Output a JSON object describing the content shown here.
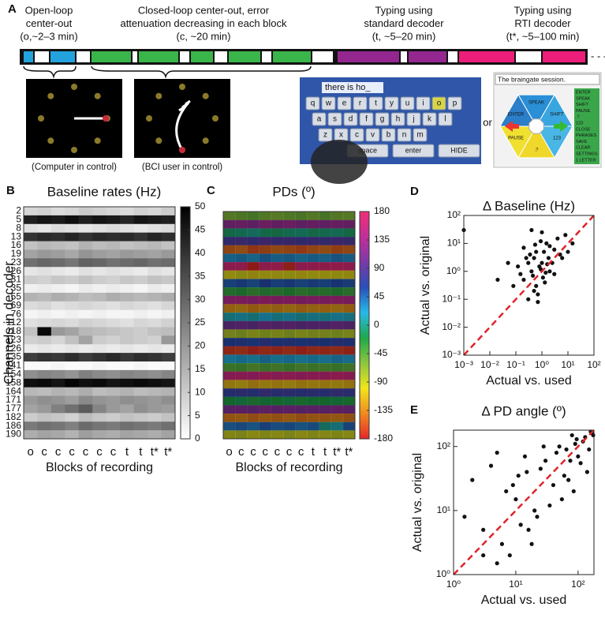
{
  "panel_a": {
    "panel": "A",
    "headers": [
      {
        "lines": [
          "Open-loop",
          "center-out",
          "(o,~2–3 min)"
        ]
      },
      {
        "lines": [
          "Closed-loop center-out, error",
          "attenuation decreasing in each block",
          "(c, ~20 min)"
        ]
      },
      {
        "lines": [
          "Typing using",
          "standard decoder",
          "(t, ~5–20 min)"
        ]
      },
      {
        "lines": [
          "Typing using",
          "RTI decoder",
          "(t*, ~5–100 min)"
        ]
      }
    ],
    "captions": [
      "(Computer in control)",
      "(BCI user in control)"
    ],
    "or": "or",
    "keyboard": {
      "field": "there is ho_",
      "rows": [
        [
          "q",
          "w",
          "e",
          "r",
          "t",
          "y",
          "u",
          "i",
          "o",
          "p"
        ],
        [
          "a",
          "s",
          "d",
          "f",
          "g",
          "h",
          "j",
          "k",
          "l"
        ],
        [
          "z",
          "x",
          "c",
          "v",
          "b",
          "n",
          "m"
        ],
        [
          "space",
          "enter",
          "HIDE"
        ]
      ]
    },
    "braingate": {
      "title": "The braingate session.",
      "wheel": [
        "SPEAK",
        "SHIFT",
        "123",
        ".?",
        "PAUSE",
        "ENTER"
      ],
      "menu": [
        "ENTER",
        "SPEAK",
        "SHIFT",
        "PAUSE",
        ".?",
        "123",
        "CLOSE",
        "PHRASES",
        "SAVE",
        "CLEAR",
        "SETTINGS",
        "1 LETTER"
      ]
    }
  },
  "chart_data": [
    {
      "type": "heatmap",
      "panel": "B",
      "title": "Baseline rates (Hz)",
      "ylabel": "Channels in decoder",
      "xlabel": "Blocks of recording",
      "categories": [
        "o",
        "c",
        "c",
        "c",
        "c",
        "c",
        "c",
        "t",
        "t",
        "t*",
        "t*"
      ],
      "rows": [
        "2",
        "5",
        "8",
        "13",
        "16",
        "19",
        "23",
        "26",
        "31",
        "35",
        "55",
        "69",
        "76",
        "112",
        "118",
        "123",
        "126",
        "135",
        "141",
        "154",
        "158",
        "164",
        "171",
        "177",
        "182",
        "186",
        "190"
      ],
      "values": [
        [
          8,
          9,
          7,
          8,
          10,
          9,
          8,
          7,
          9,
          8,
          10
        ],
        [
          44,
          46,
          45,
          47,
          44,
          46,
          45,
          43,
          46,
          45,
          44
        ],
        [
          6,
          5,
          7,
          6,
          5,
          6,
          7,
          6,
          5,
          6,
          7
        ],
        [
          40,
          42,
          41,
          43,
          40,
          42,
          41,
          42,
          40,
          43,
          41
        ],
        [
          12,
          14,
          13,
          12,
          15,
          13,
          14,
          12,
          13,
          14,
          12
        ],
        [
          18,
          20,
          19,
          17,
          21,
          19,
          18,
          20,
          19,
          18,
          20
        ],
        [
          28,
          30,
          29,
          27,
          31,
          30,
          28,
          29,
          30,
          28,
          29
        ],
        [
          5,
          6,
          5,
          4,
          6,
          5,
          6,
          5,
          4,
          6,
          5
        ],
        [
          10,
          9,
          11,
          10,
          12,
          10,
          9,
          11,
          10,
          12,
          11
        ],
        [
          3,
          4,
          3,
          2,
          4,
          3,
          4,
          3,
          2,
          4,
          3
        ],
        [
          15,
          14,
          16,
          15,
          13,
          14,
          16,
          15,
          14,
          15,
          16
        ],
        [
          7,
          8,
          6,
          7,
          8,
          7,
          6,
          8,
          7,
          6,
          8
        ],
        [
          2,
          3,
          2,
          3,
          2,
          3,
          2,
          2,
          3,
          2,
          3
        ],
        [
          6,
          7,
          8,
          7,
          9,
          8,
          7,
          6,
          8,
          7,
          9
        ],
        [
          12,
          48,
          20,
          18,
          14,
          13,
          12,
          11,
          10,
          12,
          13
        ],
        [
          9,
          10,
          8,
          12,
          18,
          10,
          9,
          11,
          10,
          9,
          20
        ],
        [
          4,
          5,
          4,
          5,
          4,
          5,
          4,
          5,
          4,
          5,
          4
        ],
        [
          38,
          40,
          39,
          41,
          38,
          40,
          42,
          39,
          41,
          40,
          38
        ],
        [
          1,
          1,
          2,
          1,
          1,
          2,
          1,
          1,
          2,
          1,
          1
        ],
        [
          22,
          24,
          23,
          21,
          25,
          23,
          22,
          24,
          23,
          22,
          24
        ],
        [
          47,
          48,
          46,
          49,
          47,
          48,
          46,
          47,
          48,
          47,
          46
        ],
        [
          14,
          13,
          15,
          14,
          16,
          13,
          14,
          15,
          13,
          14,
          15
        ],
        [
          20,
          22,
          21,
          19,
          23,
          21,
          20,
          22,
          21,
          20,
          22
        ],
        [
          18,
          20,
          25,
          28,
          32,
          24,
          20,
          18,
          22,
          20,
          19
        ],
        [
          10,
          12,
          11,
          9,
          13,
          11,
          10,
          12,
          11,
          10,
          12
        ],
        [
          26,
          28,
          27,
          25,
          29,
          27,
          26,
          28,
          27,
          26,
          28
        ],
        [
          16,
          18,
          17,
          15,
          19,
          17,
          16,
          18,
          17,
          16,
          18
        ]
      ],
      "clim": [
        0,
        50
      ],
      "cticks": [
        0,
        5,
        10,
        15,
        20,
        25,
        30,
        35,
        40,
        45,
        50
      ],
      "colors": [
        "#ffffff",
        "#000000"
      ]
    },
    {
      "type": "heatmap",
      "panel": "C",
      "title": "PDs (º)",
      "xlabel": "Blocks of recording",
      "categories": [
        "o",
        "c",
        "c",
        "c",
        "c",
        "c",
        "c",
        "t",
        "t",
        "t*",
        "t*"
      ],
      "values": [
        [
          -60,
          -55,
          -50,
          -58,
          -62,
          -57,
          -54,
          -60,
          -52,
          -59,
          -61
        ],
        [
          120,
          125,
          118,
          130,
          122,
          127,
          119,
          124,
          121,
          126,
          123
        ],
        [
          -10,
          -5,
          0,
          -8,
          -12,
          -6,
          -3,
          -9,
          -7,
          -4,
          -11
        ],
        [
          80,
          85,
          78,
          90,
          82,
          86,
          79,
          84,
          81,
          88,
          83
        ],
        [
          -150,
          -145,
          -160,
          -155,
          -148,
          -152,
          -158,
          -150,
          -146,
          -154,
          -149
        ],
        [
          30,
          35,
          28,
          40,
          32,
          36,
          29,
          34,
          31,
          38,
          33
        ],
        [
          170,
          175,
          -178,
          172,
          176,
          -175,
          171,
          174,
          173,
          177,
          170
        ],
        [
          -100,
          -95,
          -105,
          -98,
          -102,
          -96,
          -104,
          -99,
          -101,
          -97,
          -103
        ],
        [
          50,
          55,
          48,
          60,
          52,
          56,
          49,
          54,
          51,
          58,
          53
        ],
        [
          -30,
          -25,
          -35,
          -28,
          -32,
          -26,
          -34,
          -29,
          -31,
          -27,
          -33
        ],
        [
          140,
          145,
          138,
          150,
          142,
          146,
          139,
          144,
          141,
          148,
          143
        ],
        [
          -130,
          -125,
          -135,
          -128,
          -132,
          -126,
          -134,
          -129,
          -131,
          -127,
          -133
        ],
        [
          10,
          15,
          8,
          20,
          12,
          16,
          9,
          14,
          11,
          18,
          13
        ],
        [
          100,
          105,
          98,
          110,
          102,
          106,
          99,
          104,
          101,
          108,
          103
        ],
        [
          -80,
          -75,
          -85,
          -78,
          -82,
          -76,
          -84,
          -79,
          -81,
          -77,
          -83
        ],
        [
          60,
          65,
          58,
          70,
          62,
          66,
          59,
          64,
          61,
          68,
          63
        ],
        [
          -170,
          -165,
          -175,
          -168,
          -172,
          -166,
          -174,
          -169,
          -171,
          -167,
          -173
        ],
        [
          20,
          25,
          18,
          30,
          22,
          26,
          19,
          24,
          21,
          28,
          23
        ],
        [
          -45,
          -40,
          -50,
          -43,
          -47,
          -41,
          -49,
          -44,
          -46,
          -42,
          -48
        ],
        [
          160,
          165,
          158,
          170,
          162,
          166,
          159,
          164,
          161,
          168,
          163
        ],
        [
          -115,
          -110,
          -120,
          -113,
          -117,
          -111,
          -119,
          -114,
          -116,
          -112,
          -118
        ],
        [
          70,
          75,
          68,
          80,
          72,
          76,
          69,
          74,
          71,
          78,
          73
        ],
        [
          -20,
          -15,
          -25,
          -18,
          -22,
          -16,
          -24,
          -19,
          -21,
          -17,
          -23
        ],
        [
          110,
          115,
          108,
          120,
          112,
          116,
          109,
          114,
          111,
          118,
          113
        ],
        [
          -140,
          -135,
          -145,
          -138,
          -142,
          -136,
          -144,
          -139,
          -141,
          -137,
          -143
        ],
        [
          40,
          45,
          38,
          50,
          42,
          46,
          39,
          44,
          0,
          10,
          48
        ],
        [
          -90,
          -85,
          -95,
          -88,
          -92,
          -86,
          -94,
          -89,
          -91,
          -87,
          -93
        ]
      ],
      "clim": [
        -180,
        180
      ],
      "cticks": [
        {
          "value": -180,
          "label": "-180"
        },
        {
          "value": -135,
          "label": "-135"
        },
        {
          "value": -90,
          "label": "-90"
        },
        {
          "value": -45,
          "label": "-45"
        },
        0,
        45,
        90,
        135,
        180
      ],
      "colors": [
        "#e6262a",
        "#f08a1e",
        "#f1e51c",
        "#8cc63f",
        "#1fa84a",
        "#27b9e8",
        "#2a4fb8",
        "#7a3aa6",
        "#c22f9a",
        "#ef2f76"
      ]
    },
    {
      "type": "scatter",
      "panel": "D",
      "title": "Δ Baseline (Hz)",
      "xlabel": "Actual vs. used",
      "ylabel": "Actual vs. original",
      "log": true,
      "color": "#111111",
      "diagonal_color": "#e0242a",
      "x": [
        0.3,
        0.5,
        0.8,
        1.2,
        2,
        0.15,
        0.4,
        0.6,
        1,
        1.5,
        3,
        5,
        0.2,
        0.25,
        0.7,
        0.9,
        1.1,
        2.5,
        4,
        8,
        0.35,
        0.45,
        0.55,
        1.3,
        1.8,
        0.12,
        0.08,
        0.3,
        0.6,
        1,
        2,
        3,
        6,
        0.5,
        0.2,
        0.9,
        1.4,
        0.05,
        0.02,
        0.001,
        10,
        15,
        0.7,
        0.4,
        1.6
      ],
      "values": [
        2,
        3,
        1.5,
        5,
        8,
        0.8,
        1,
        0.3,
        2,
        10,
        6,
        4,
        0.5,
        3,
        0.15,
        1.2,
        0.6,
        2,
        15,
        20,
        4,
        0.7,
        9,
        0.4,
        3,
        1.5,
        0.3,
        0.1,
        5,
        25,
        1,
        0.8,
        3,
        0.2,
        7,
        12,
        0.9,
        2,
        0.5,
        30,
        5,
        10,
        0.08,
        30,
        1.8
      ],
      "xlim": [
        0.001,
        100
      ],
      "ylim": [
        0.001,
        100
      ],
      "xticks": [
        {
          "value": 0.001,
          "label": "10⁻³"
        },
        {
          "value": 0.01,
          "label": "10⁻²"
        },
        {
          "value": 0.1,
          "label": "10⁻¹"
        },
        {
          "value": 1,
          "label": "10⁰"
        },
        {
          "value": 10,
          "label": "10¹"
        },
        {
          "value": 100,
          "label": "10²"
        }
      ],
      "yticks": [
        {
          "value": 0.001,
          "label": "10⁻³"
        },
        {
          "value": 0.01,
          "label": "10⁻²"
        },
        {
          "value": 0.1,
          "label": "10⁻¹"
        },
        {
          "value": 1,
          "label": "10⁰"
        },
        {
          "value": 10,
          "label": "10¹"
        },
        {
          "value": 100,
          "label": "10²"
        }
      ]
    },
    {
      "type": "scatter",
      "panel": "E",
      "title": "Δ PD angle (º)",
      "xlabel": "Actual vs. used",
      "ylabel": "Actual vs. original",
      "log": true,
      "color": "#111111",
      "diagonal_color": "#e0242a",
      "x": [
        2,
        3,
        5,
        8,
        10,
        15,
        20,
        30,
        40,
        50,
        60,
        80,
        100,
        120,
        150,
        170,
        5,
        7,
        12,
        18,
        25,
        35,
        45,
        70,
        90,
        110,
        130,
        160,
        1.5,
        4,
        6,
        9,
        14,
        22,
        28,
        55,
        75,
        95,
        140,
        175,
        3,
        11,
        16,
        65,
        85
      ],
      "values": [
        30,
        5,
        80,
        2,
        15,
        40,
        10,
        60,
        25,
        100,
        35,
        150,
        70,
        120,
        90,
        160,
        1.5,
        20,
        6,
        3,
        45,
        12,
        80,
        30,
        110,
        55,
        140,
        170,
        8,
        50,
        3,
        25,
        70,
        8,
        100,
        15,
        60,
        130,
        40,
        150,
        2,
        35,
        5,
        90,
        20
      ],
      "xlim": [
        1,
        180
      ],
      "ylim": [
        1,
        180
      ],
      "xticks": [
        {
          "value": 1,
          "label": "10⁰"
        },
        {
          "value": 10,
          "label": "10¹"
        },
        {
          "value": 100,
          "label": "10²"
        }
      ],
      "yticks": [
        {
          "value": 1,
          "label": "10⁰"
        },
        {
          "value": 10,
          "label": "10¹"
        },
        {
          "value": 100,
          "label": "10²"
        }
      ]
    }
  ]
}
